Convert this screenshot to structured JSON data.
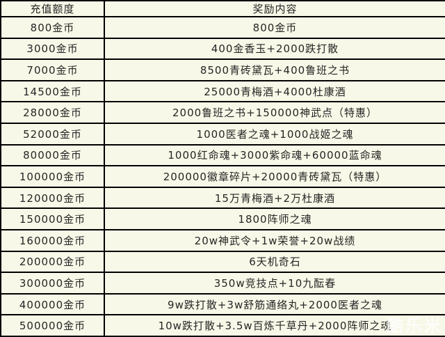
{
  "colors": {
    "background": "#F8F8E8",
    "border": "#000000",
    "text": "#252525",
    "watermark": "#FFFFFF"
  },
  "table": {
    "headers": [
      "充值额度",
      "奖励内容"
    ],
    "rows": [
      [
        "800金币",
        "800金币"
      ],
      [
        "3000金币",
        "400金香玉+2000跌打散"
      ],
      [
        "7000金币",
        "8500青砖黛瓦+400鲁班之书"
      ],
      [
        "14500金币",
        "25000青梅酒+4000杜康酒"
      ],
      [
        "28000金币",
        "2000鲁班之书+150000神武点（特惠）"
      ],
      [
        "52000金币",
        "1000医者之魂+1000战姬之魂"
      ],
      [
        "80000金币",
        "1000红命魂+3000紫命魂+60000蓝命魂"
      ],
      [
        "100000金币",
        "200000徽章碎片+20000青砖黛瓦（特惠）"
      ],
      [
        "120000金币",
        "15万青梅酒+2万杜康酒"
      ],
      [
        "150000金币",
        "1800阵师之魂"
      ],
      [
        "160000金币",
        "20w神武令+1w荣誉+20w战绩"
      ],
      [
        "200000金币",
        "6天机奇石"
      ],
      [
        "300000金币",
        "350w竞技点+10九酝春"
      ],
      [
        "400000金币",
        "9w跌打散+3w舒筋通络丸+2000医者之魂"
      ],
      [
        "500000金币",
        "10w跌打散+3.5w百炼千草丹+2000阵师之魂"
      ]
    ]
  },
  "watermark": {
    "text": "酷乐米"
  }
}
